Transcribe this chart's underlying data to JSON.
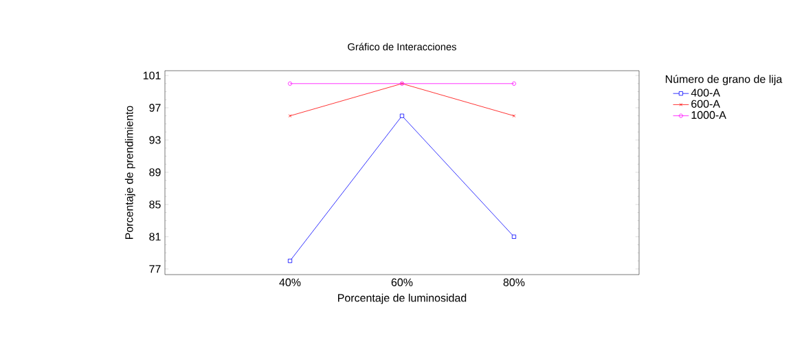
{
  "chart_data": {
    "type": "line",
    "title": "Gráfico de Interacciones",
    "xlabel": "Porcentaje de luminosidad",
    "ylabel": "Porcentaje de prendimiento",
    "legend_title": "Número de grano de lija",
    "categories": [
      "40%",
      "60%",
      "80%"
    ],
    "series": [
      {
        "name": "400-A",
        "color": "#0000ff",
        "marker": "square",
        "values": [
          78,
          96,
          81
        ]
      },
      {
        "name": "600-A",
        "color": "#ff0000",
        "marker": "cross",
        "values": [
          96,
          100,
          96
        ]
      },
      {
        "name": "1000-A",
        "color": "#ff00ff",
        "marker": "circle",
        "values": [
          100,
          100,
          100
        ]
      }
    ],
    "ylim": [
      76.3,
      101.6
    ],
    "yticks": [
      77,
      81,
      85,
      89,
      93,
      97,
      101
    ],
    "legend": "right",
    "line_style": "solid"
  }
}
